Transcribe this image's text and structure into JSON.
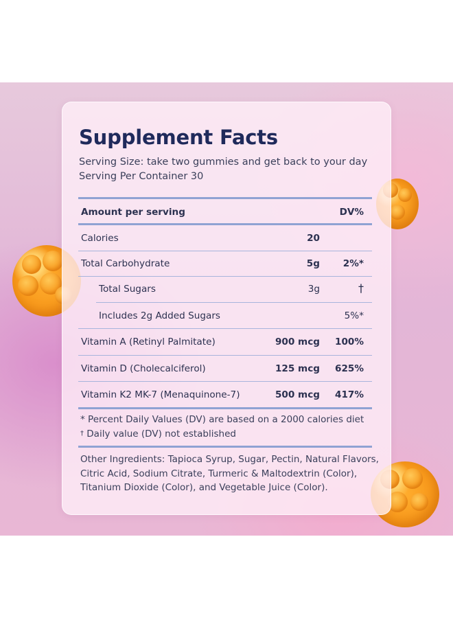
{
  "title": "Supplement Facts",
  "serving_size": "Serving Size: take two gummies and get back to your day",
  "servings_per_container": "Serving Per Container 30",
  "table": {
    "header_left": "Amount per serving",
    "header_right": "DV%",
    "rows": [
      {
        "name": "Calories",
        "amount": "20",
        "dv": ""
      },
      {
        "name": "Total Carbohydrate",
        "amount": "5g",
        "dv": "2%*"
      },
      {
        "name": "Total Sugars",
        "amount": "3g",
        "dv": "†"
      },
      {
        "name": "Includes 2g Added Sugars",
        "amount": "",
        "dv": "5%*"
      },
      {
        "name": "Vitamin A (Retinyl Palmitate)",
        "amount": "900 mcg",
        "dv": "100%"
      },
      {
        "name": "Vitamin D (Cholecalciferol)",
        "amount": "125 mcg",
        "dv": "625%"
      },
      {
        "name": "Vitamin K2 MK-7 (Menaquinone-7)",
        "amount": "500 mcg",
        "dv": "417%"
      }
    ]
  },
  "footnotes": {
    "percent_dv": "* Percent Daily Values (DV) are based on a 2000 calories diet",
    "dagger_mark": "†",
    "not_established": " Daily value (DV) not established"
  },
  "other_ingredients": "Other Ingredients: Tapioca Syrup, Sugar, Pectin, Natural Flavors, Citric Acid, Sodium Citrate, Turmeric & Maltodextrin (Color), Titanium Dioxide (Color), and Vegetable Juice (Color).",
  "colors": {
    "title": "#1f2a5b",
    "rule": "#8fa2d3",
    "gummy": "#f89a1c"
  }
}
